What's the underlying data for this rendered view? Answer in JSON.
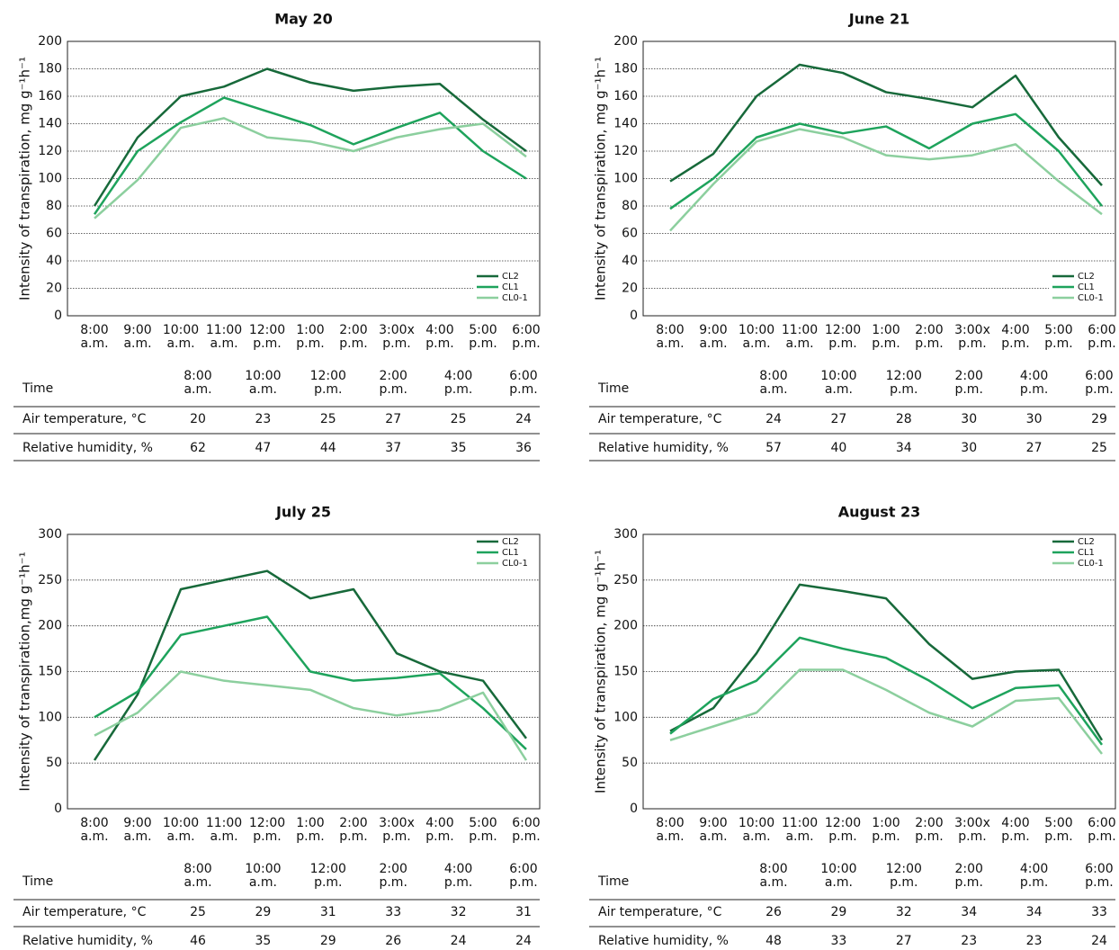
{
  "chart_data": [
    {
      "type": "line",
      "title": "May 20",
      "y_label": "Intensity of transpiration, mg g⁻¹h⁻¹",
      "categories": [
        "8:00 a.m.",
        "9:00 a.m.",
        "10:00 a.m.",
        "11:00 a.m.",
        "12:00 p.m.",
        "1:00 p.m.",
        "2:00 p.m.",
        "3:00x p.m.",
        "4:00 p.m.",
        "5:00 p.m.",
        "6:00 p.m."
      ],
      "series": [
        {
          "name": "CL2",
          "color": "#17693a",
          "values": [
            80,
            130,
            160,
            167,
            180,
            170,
            164,
            167,
            169,
            143,
            120
          ]
        },
        {
          "name": "CL1",
          "color": "#1ea35c",
          "values": [
            74,
            120,
            141,
            159,
            149,
            139,
            125,
            137,
            148,
            120,
            100
          ]
        },
        {
          "name": "CL0-1",
          "color": "#8ccf9e",
          "values": [
            71,
            99,
            137,
            144,
            130,
            127,
            120,
            130,
            136,
            140,
            116
          ]
        }
      ],
      "ylim": [
        0,
        200
      ],
      "yticks": [
        0,
        20,
        40,
        60,
        80,
        100,
        120,
        140,
        160,
        180,
        200
      ],
      "grid": true,
      "legend": "lower right",
      "table": {
        "header": [
          "Time",
          "8:00 a.m.",
          "10:00 a.m.",
          "12:00 p.m.",
          "2:00 p.m.",
          "4:00 p.m.",
          "6:00 p.m."
        ],
        "rows": [
          [
            "Air temperature, °C",
            20,
            23,
            25,
            27,
            25,
            24
          ],
          [
            "Relative humidity, %",
            62,
            47,
            44,
            37,
            35,
            36
          ]
        ]
      }
    },
    {
      "type": "line",
      "title": "June 21",
      "y_label": "Intensity of transpiration, mg g⁻¹h⁻¹",
      "categories": [
        "8:00 a.m.",
        "9:00 a.m.",
        "10:00 a.m.",
        "11:00 a.m.",
        "12:00 p.m.",
        "1:00 p.m.",
        "2:00 p.m.",
        "3:00x p.m.",
        "4:00 p.m.",
        "5:00 p.m.",
        "6:00 p.m."
      ],
      "series": [
        {
          "name": "CL2",
          "color": "#17693a",
          "values": [
            98,
            118,
            160,
            183,
            177,
            163,
            158,
            152,
            175,
            130,
            95
          ]
        },
        {
          "name": "CL1",
          "color": "#1ea35c",
          "values": [
            78,
            100,
            130,
            140,
            133,
            138,
            122,
            140,
            147,
            120,
            80
          ]
        },
        {
          "name": "CL0-1",
          "color": "#8ccf9e",
          "values": [
            62,
            96,
            127,
            136,
            130,
            117,
            114,
            117,
            125,
            98,
            74
          ]
        }
      ],
      "ylim": [
        0,
        200
      ],
      "yticks": [
        0,
        20,
        40,
        60,
        80,
        100,
        120,
        140,
        160,
        180,
        200
      ],
      "grid": true,
      "legend": "lower right",
      "table": {
        "header": [
          "Time",
          "8:00 a.m.",
          "10:00 a.m.",
          "12:00 p.m.",
          "2:00 p.m.",
          "4:00 p.m.",
          "6:00 p.m."
        ],
        "rows": [
          [
            "Air temperature, °C",
            24,
            27,
            28,
            30,
            30,
            29
          ],
          [
            "Relative humidity, %",
            57,
            40,
            34,
            30,
            27,
            25
          ]
        ]
      }
    },
    {
      "type": "line",
      "title": "July 25",
      "y_label": "Intensity of transpiration,mg g⁻¹h⁻¹",
      "categories": [
        "8:00 a.m.",
        "9:00 a.m.",
        "10:00 a.m.",
        "11:00 a.m.",
        "12:00 p.m.",
        "1:00 p.m.",
        "2:00 p.m.",
        "3:00x p.m.",
        "4:00 p.m.",
        "5:00 p.m.",
        "6:00 p.m."
      ],
      "series": [
        {
          "name": "CL2",
          "color": "#17693a",
          "values": [
            53,
            125,
            240,
            250,
            260,
            230,
            240,
            170,
            150,
            140,
            77
          ]
        },
        {
          "name": "CL1",
          "color": "#1ea35c",
          "values": [
            100,
            128,
            190,
            200,
            210,
            150,
            140,
            143,
            148,
            110,
            65
          ]
        },
        {
          "name": "CL0-1",
          "color": "#8ccf9e",
          "values": [
            80,
            105,
            150,
            140,
            135,
            130,
            110,
            102,
            108,
            127,
            53
          ]
        }
      ],
      "ylim": [
        0,
        300
      ],
      "yticks": [
        0,
        50,
        100,
        150,
        200,
        250,
        300
      ],
      "grid": true,
      "legend": "upper right",
      "table": {
        "header": [
          "Time",
          "8:00 a.m.",
          "10:00 a.m.",
          "12:00 p.m.",
          "2:00 p.m.",
          "4:00 p.m.",
          "6:00 p.m."
        ],
        "rows": [
          [
            "Air temperature, °C",
            25,
            29,
            31,
            33,
            32,
            31
          ],
          [
            "Relative humidity, %",
            46,
            35,
            29,
            26,
            24,
            24
          ]
        ]
      }
    },
    {
      "type": "line",
      "title": "August 23",
      "y_label": "Intensity of transpiration, mg g⁻¹h⁻¹",
      "categories": [
        "8:00 a.m.",
        "9:00 a.m.",
        "10:00 a.m.",
        "11:00 a.m.",
        "12:00 p.m.",
        "1:00 p.m.",
        "2:00 p.m.",
        "3:00x p.m.",
        "4:00 p.m.",
        "5:00 p.m.",
        "6:00 p.m."
      ],
      "series": [
        {
          "name": "CL2",
          "color": "#17693a",
          "values": [
            85,
            110,
            170,
            245,
            238,
            230,
            180,
            142,
            150,
            152,
            75
          ]
        },
        {
          "name": "CL1",
          "color": "#1ea35c",
          "values": [
            82,
            120,
            140,
            187,
            175,
            165,
            140,
            110,
            132,
            135,
            70
          ]
        },
        {
          "name": "CL0-1",
          "color": "#8ccf9e",
          "values": [
            75,
            90,
            105,
            152,
            152,
            130,
            105,
            90,
            118,
            121,
            60
          ]
        }
      ],
      "ylim": [
        0,
        300
      ],
      "yticks": [
        0,
        50,
        100,
        150,
        200,
        250,
        300
      ],
      "grid": true,
      "legend": "upper right",
      "table": {
        "header": [
          "Time",
          "8:00 a.m.",
          "10:00 a.m.",
          "12:00 p.m.",
          "2:00 p.m.",
          "4:00 p.m.",
          "6:00 p.m."
        ],
        "rows": [
          [
            "Air temperature, °C",
            26,
            29,
            32,
            34,
            34,
            33
          ],
          [
            "Relative humidity, %",
            48,
            33,
            27,
            23,
            23,
            24
          ]
        ]
      }
    }
  ]
}
